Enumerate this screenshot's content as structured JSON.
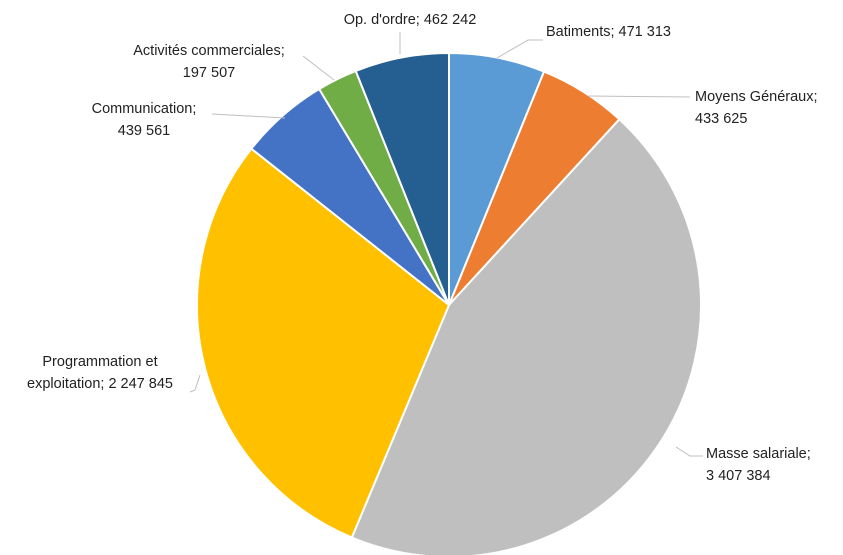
{
  "chart_data": {
    "type": "pie",
    "start_angle_deg": 0,
    "direction": "clockwise",
    "slices": [
      {
        "name": "Batiments",
        "value": 471313,
        "value_label": "471 313",
        "color": "#5b9bd5",
        "label_lines": [
          "Batiments; 471 313"
        ]
      },
      {
        "name": "Moyens Généraux",
        "value": 433625,
        "value_label": "433 625",
        "color": "#ed7d31",
        "label_lines": [
          "Moyens Généraux;",
          "433 625"
        ]
      },
      {
        "name": "Masse salariale",
        "value": 3407384,
        "value_label": "3 407 384",
        "color": "#bfbfbf",
        "label_lines": [
          "Masse salariale;",
          "3 407 384"
        ]
      },
      {
        "name": "Programmation et exploitation",
        "value": 2247845,
        "value_label": "2 247 845",
        "color": "#ffc000",
        "label_lines": [
          "Programmation et",
          "exploitation; 2 247 845"
        ]
      },
      {
        "name": "Communication",
        "value": 439561,
        "value_label": "439 561",
        "color": "#4472c4",
        "label_lines": [
          "Communication;",
          "439 561"
        ]
      },
      {
        "name": "Activités commerciales",
        "value": 197507,
        "value_label": "197 507",
        "color": "#70ad47",
        "label_lines": [
          "Activités commerciales;",
          "197 507"
        ]
      },
      {
        "name": "Op. d'ordre",
        "value": 462242,
        "value_label": "462 242",
        "color": "#255e91",
        "label_lines": [
          "Op. d'ordre; 462 242"
        ]
      }
    ]
  }
}
